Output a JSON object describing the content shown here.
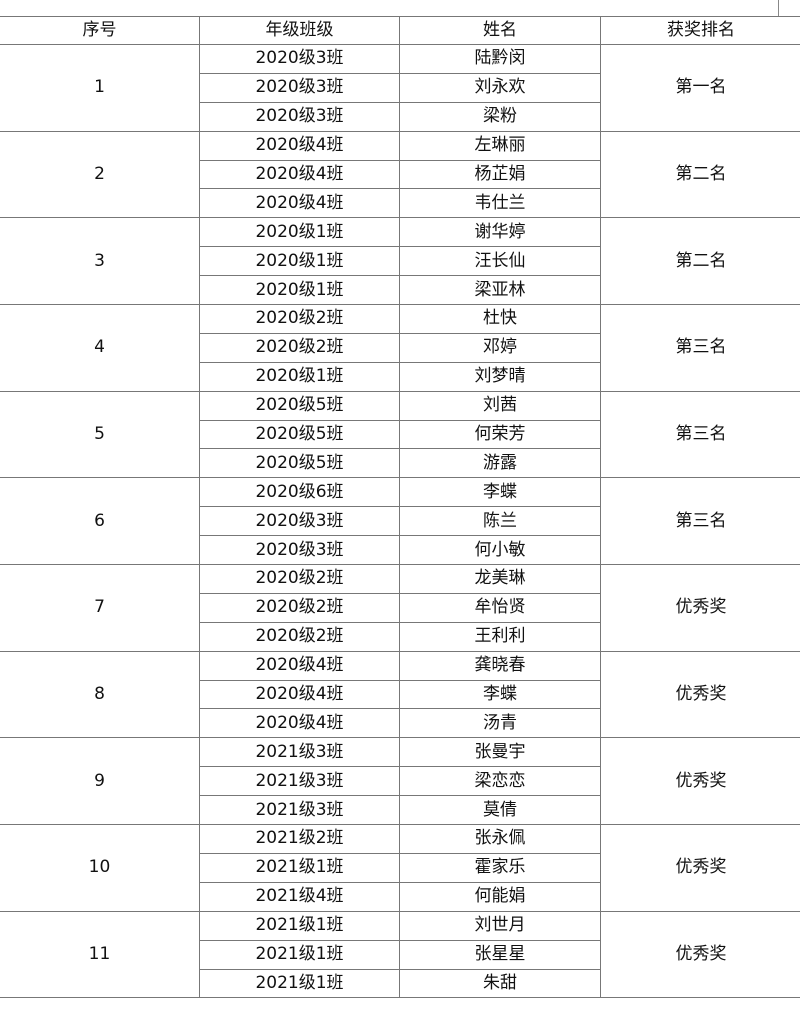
{
  "header": {
    "index": "序号",
    "class": "年级班级",
    "name": "姓名",
    "rank": "获奖排名"
  },
  "groups": [
    {
      "index": "1",
      "rank": "第一名",
      "members": [
        {
          "class": "2020级3班",
          "name": "陆黔闵"
        },
        {
          "class": "2020级3班",
          "name": "刘永欢"
        },
        {
          "class": "2020级3班",
          "name": "梁粉"
        }
      ]
    },
    {
      "index": "2",
      "rank": "第二名",
      "members": [
        {
          "class": "2020级4班",
          "name": "左琳丽"
        },
        {
          "class": "2020级4班",
          "name": "杨芷娟"
        },
        {
          "class": "2020级4班",
          "name": "韦仕兰"
        }
      ]
    },
    {
      "index": "3",
      "rank": "第二名",
      "members": [
        {
          "class": "2020级1班",
          "name": "谢华婷"
        },
        {
          "class": "2020级1班",
          "name": "汪长仙"
        },
        {
          "class": "2020级1班",
          "name": "梁亚林"
        }
      ]
    },
    {
      "index": "4",
      "rank": "第三名",
      "members": [
        {
          "class": "2020级2班",
          "name": "杜快"
        },
        {
          "class": "2020级2班",
          "name": "邓婷"
        },
        {
          "class": "2020级1班",
          "name": "刘梦晴"
        }
      ]
    },
    {
      "index": "5",
      "rank": "第三名",
      "members": [
        {
          "class": "2020级5班",
          "name": "刘茜"
        },
        {
          "class": "2020级5班",
          "name": "何荣芳"
        },
        {
          "class": "2020级5班",
          "name": "游露"
        }
      ]
    },
    {
      "index": "6",
      "rank": "第三名",
      "members": [
        {
          "class": "2020级6班",
          "name": "李蝶"
        },
        {
          "class": "2020级3班",
          "name": "陈兰"
        },
        {
          "class": "2020级3班",
          "name": "何小敏"
        }
      ]
    },
    {
      "index": "7",
      "rank": "优秀奖",
      "members": [
        {
          "class": "2020级2班",
          "name": "龙美琳"
        },
        {
          "class": "2020级2班",
          "name": "牟怡贤"
        },
        {
          "class": "2020级2班",
          "name": "王利利"
        }
      ]
    },
    {
      "index": "8",
      "rank": "优秀奖",
      "members": [
        {
          "class": "2020级4班",
          "name": "龚晓春"
        },
        {
          "class": "2020级4班",
          "name": "李蝶"
        },
        {
          "class": "2020级4班",
          "name": "汤青"
        }
      ]
    },
    {
      "index": "9",
      "rank": "优秀奖",
      "members": [
        {
          "class": "2021级3班",
          "name": "张曼宇"
        },
        {
          "class": "2021级3班",
          "name": "梁恋恋"
        },
        {
          "class": "2021级3班",
          "name": "莫倩"
        }
      ]
    },
    {
      "index": "10",
      "rank": "优秀奖",
      "members": [
        {
          "class": "2021级2班",
          "name": "张永佩"
        },
        {
          "class": "2021级1班",
          "name": "霍家乐"
        },
        {
          "class": "2021级4班",
          "name": "何能娟"
        }
      ]
    },
    {
      "index": "11",
      "rank": "优秀奖",
      "members": [
        {
          "class": "2021级1班",
          "name": "刘世月"
        },
        {
          "class": "2021级1班",
          "name": "张星星"
        },
        {
          "class": "2021级1班",
          "name": "朱甜"
        }
      ]
    }
  ]
}
